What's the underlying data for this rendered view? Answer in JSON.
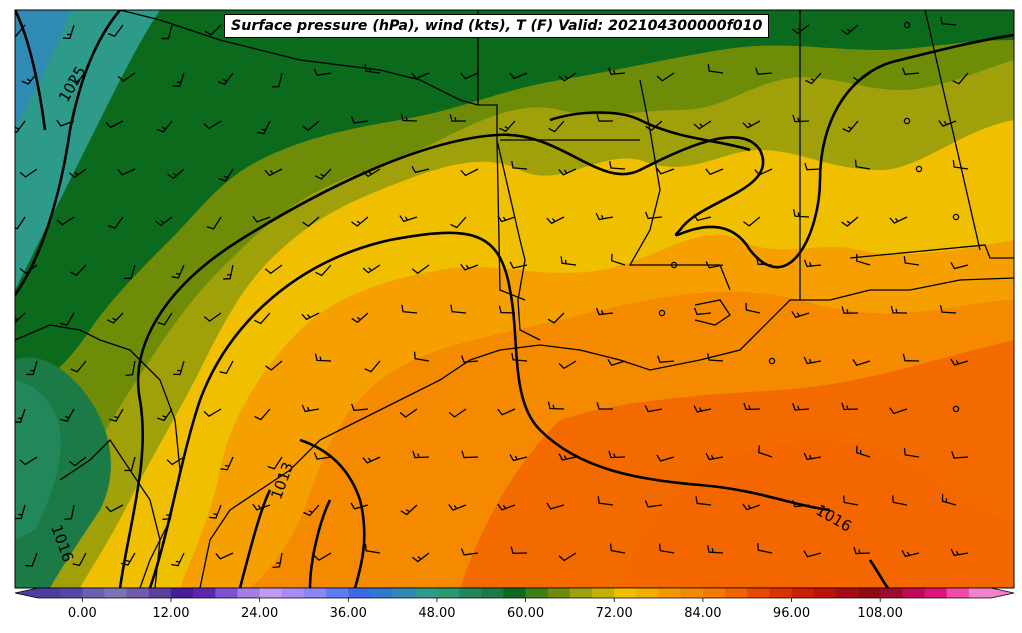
{
  "title": "Surface pressure (hPa), wind (kts), T (F) Valid: 202104300000f010",
  "isobar_labels": [
    "1025",
    "1016",
    "1013",
    "1016"
  ],
  "colorbar": {
    "ticks": [
      "0.00",
      "12.00",
      "24.00",
      "36.00",
      "48.00",
      "60.00",
      "72.00",
      "84.00",
      "96.00",
      "108.00"
    ],
    "min": -6,
    "max": 123,
    "step": 3,
    "colors": [
      "#4a3f9e",
      "#5546a8",
      "#6a60b0",
      "#7a74b6",
      "#6e5aa8",
      "#5a3ea0",
      "#4a1a98",
      "#5e26b0",
      "#7f52d2",
      "#a47de4",
      "#c09af0",
      "#a98cf5",
      "#8a86f4",
      "#5f7df2",
      "#3d69e8",
      "#2f7ad0",
      "#2f8ab4",
      "#2e9a8a",
      "#2a9a70",
      "#22875a",
      "#1b7a45",
      "#0c6a1c",
      "#3f7e12",
      "#6f8c08",
      "#a0a00a",
      "#c8b000",
      "#f0c000",
      "#f4ac00",
      "#f69800",
      "#f58a00",
      "#f77a00",
      "#f26400",
      "#ea4800",
      "#e03200",
      "#d01c00",
      "#c0100a",
      "#a80a14",
      "#920a10",
      "#a00a30",
      "#c00a58",
      "#e2127a",
      "#f04aa6",
      "#f282c8"
    ],
    "extend": "both"
  }
}
